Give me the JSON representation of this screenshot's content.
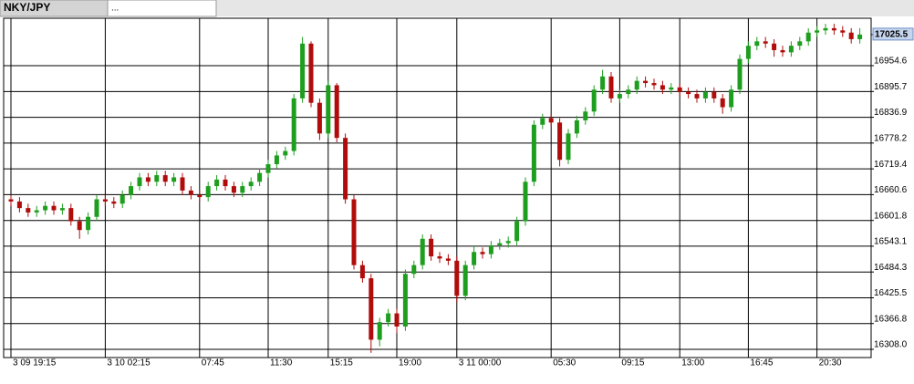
{
  "tabs": [
    "NKY/JPY",
    "..."
  ],
  "chart_data": {
    "type": "candlestick",
    "categories": [
      "3 09 19:15",
      null,
      null,
      null,
      null,
      null,
      null,
      null,
      null,
      null,
      null,
      "3 10 02:15",
      null,
      null,
      null,
      null,
      null,
      null,
      null,
      null,
      null,
      null,
      "07:45",
      null,
      null,
      null,
      null,
      null,
      null,
      null,
      "11:30",
      null,
      null,
      null,
      null,
      null,
      null,
      "15:15",
      null,
      null,
      null,
      null,
      null,
      null,
      null,
      "19:00",
      null,
      null,
      null,
      null,
      null,
      null,
      "3 11 00:00",
      null,
      null,
      null,
      null,
      null,
      null,
      null,
      null,
      null,
      null,
      "05:30",
      null,
      null,
      null,
      null,
      null,
      null,
      null,
      "09:15",
      null,
      null,
      null,
      null,
      null,
      null,
      "13:00",
      null,
      null,
      null,
      null,
      null,
      null,
      null,
      "16:45",
      null,
      null,
      null,
      null,
      null,
      null,
      null,
      "20:30",
      null,
      null,
      null,
      null,
      null
    ],
    "open": [
      16650,
      16645,
      16630,
      16620,
      16625,
      16635,
      16625,
      16630,
      16600,
      16580,
      16610,
      16650,
      16645,
      16640,
      16660,
      16680,
      16700,
      16690,
      16705,
      16690,
      16700,
      16670,
      16660,
      16655,
      16680,
      16695,
      16680,
      16665,
      16680,
      16690,
      16710,
      16730,
      16750,
      16760,
      16880,
      17005,
      16870,
      16800,
      16910,
      16790,
      16650,
      16500,
      16470,
      16330,
      16370,
      16390,
      16360,
      16480,
      16500,
      16560,
      16520,
      16515,
      16510,
      16430,
      16500,
      16530,
      16525,
      16545,
      16550,
      16555,
      16600,
      16690,
      16820,
      16835,
      16825,
      16740,
      16800,
      16830,
      16850,
      16900,
      16930,
      16880,
      16890,
      16900,
      16920,
      16915,
      16910,
      16900,
      16905,
      16895,
      16890,
      16880,
      16895,
      16880,
      16860,
      16900,
      16970,
      17000,
      17010,
      17005,
      16990,
      16985,
      17000,
      17010,
      17030,
      17035,
      17040,
      17035,
      17030,
      17015
    ],
    "high": [
      16660,
      16655,
      16640,
      16635,
      16645,
      16645,
      16640,
      16640,
      16610,
      16620,
      16660,
      16660,
      16655,
      16670,
      16690,
      16710,
      16710,
      16715,
      16715,
      16710,
      16710,
      16680,
      16670,
      16690,
      16705,
      16705,
      16690,
      16690,
      16700,
      16720,
      16740,
      16760,
      16770,
      16890,
      17020,
      17010,
      16880,
      16920,
      16915,
      16800,
      16660,
      16510,
      16480,
      16380,
      16400,
      16400,
      16490,
      16510,
      16570,
      16570,
      16530,
      16525,
      16520,
      16510,
      16545,
      16540,
      16555,
      16560,
      16565,
      16610,
      16700,
      16830,
      16845,
      16845,
      16835,
      16810,
      16840,
      16860,
      16910,
      16945,
      16940,
      16900,
      16910,
      16930,
      16930,
      16925,
      16920,
      16915,
      16915,
      16905,
      16900,
      16905,
      16905,
      16890,
      16910,
      16980,
      17010,
      17020,
      17020,
      17015,
      17000,
      17010,
      17020,
      17040,
      17045,
      17050,
      17050,
      17045,
      17040,
      17040
    ],
    "low": [
      16635,
      16620,
      16610,
      16610,
      16615,
      16615,
      16615,
      16590,
      16560,
      16570,
      16600,
      16635,
      16630,
      16630,
      16650,
      16670,
      16680,
      16680,
      16680,
      16680,
      16660,
      16650,
      16645,
      16645,
      16670,
      16670,
      16655,
      16655,
      16670,
      16680,
      16700,
      16720,
      16740,
      16750,
      16870,
      16860,
      16785,
      16790,
      16780,
      16640,
      16490,
      16460,
      16300,
      16315,
      16360,
      16345,
      16350,
      16470,
      16490,
      16510,
      16505,
      16500,
      16415,
      16420,
      16490,
      16515,
      16515,
      16535,
      16540,
      16545,
      16590,
      16680,
      16810,
      16815,
      16725,
      16730,
      16790,
      16820,
      16840,
      16890,
      16870,
      16870,
      16880,
      16890,
      16905,
      16900,
      16890,
      16890,
      16885,
      16880,
      16870,
      16870,
      16870,
      16845,
      16850,
      16890,
      16960,
      16990,
      16995,
      16975,
      16975,
      16975,
      16990,
      17000,
      17020,
      17025,
      17025,
      17020,
      17005,
      17005
    ],
    "close": [
      16645,
      16630,
      16620,
      16625,
      16635,
      16625,
      16630,
      16600,
      16580,
      16610,
      16650,
      16645,
      16640,
      16660,
      16680,
      16700,
      16690,
      16705,
      16690,
      16700,
      16670,
      16660,
      16655,
      16680,
      16695,
      16680,
      16665,
      16680,
      16690,
      16710,
      16730,
      16750,
      16760,
      16880,
      17005,
      16870,
      16800,
      16910,
      16790,
      16650,
      16500,
      16470,
      16330,
      16370,
      16390,
      16360,
      16480,
      16500,
      16560,
      16520,
      16515,
      16510,
      16430,
      16500,
      16530,
      16525,
      16545,
      16550,
      16555,
      16600,
      16690,
      16820,
      16835,
      16825,
      16740,
      16800,
      16830,
      16850,
      16900,
      16930,
      16880,
      16890,
      16900,
      16920,
      16915,
      16910,
      16900,
      16905,
      16895,
      16890,
      16880,
      16895,
      16880,
      16860,
      16900,
      16970,
      17000,
      17010,
      17005,
      16990,
      16985,
      17000,
      17010,
      17030,
      17035,
      17040,
      17035,
      17030,
      17015,
      17025.5
    ],
    "up_color": "#1e9e1e",
    "down_color": "#b00c0c",
    "last_price": 17025.5,
    "ylim": [
      16289.3,
      17062.7
    ],
    "yticks": [
      {
        "value": 16308,
        "label": "16308.0"
      },
      16366.8,
      16425.5,
      16484.3,
      16543.1,
      16601.8,
      16660.6,
      16719.4,
      16778.2,
      16836.9,
      16895.7,
      16954.6
    ],
    "grid": true
  }
}
